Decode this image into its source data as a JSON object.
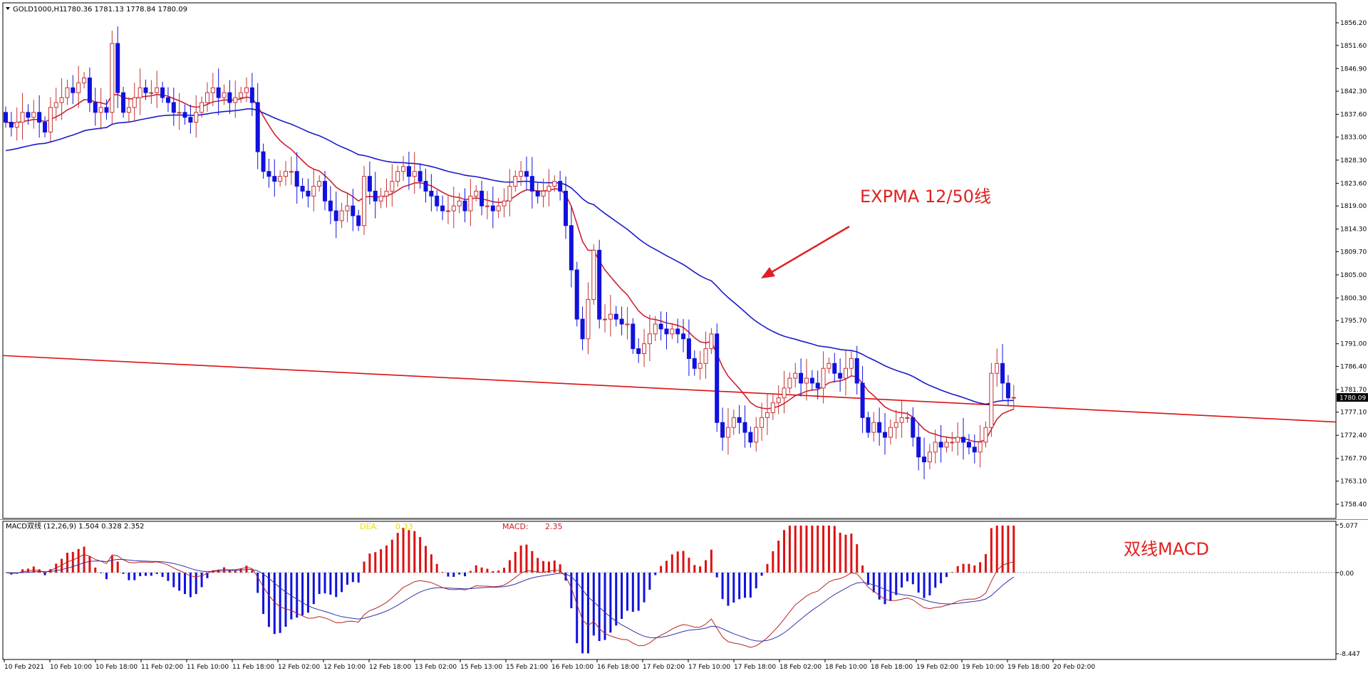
{
  "symbol_header": {
    "menu_icon": "triangle-down-icon",
    "symbol": "GOLD1000,H1",
    "ohlc": "1780.36 1781.13 1778.84 1780.09"
  },
  "colors": {
    "bull": "#c33333",
    "bear": "#1111dd",
    "ema_fast": "#cc2233",
    "ema_slow": "#1a1acc",
    "trendline": "#dd1111",
    "annotation": "#e02020",
    "dea_label": "#e8e000",
    "grid_frame": "#000000"
  },
  "annotations": {
    "expma": "EXPMA 12/50线",
    "macd": "双线MACD"
  },
  "price_axis": {
    "ticks": [
      "1856.20",
      "1851.60",
      "1846.90",
      "1842.30",
      "1837.60",
      "1833.00",
      "1828.30",
      "1823.60",
      "1819.00",
      "1814.30",
      "1809.70",
      "1805.00",
      "1800.30",
      "1795.70",
      "1791.00",
      "1786.40",
      "1781.70",
      "1777.10",
      "1772.40",
      "1767.70",
      "1763.10",
      "1758.40"
    ],
    "current": "1780.09"
  },
  "macd_panel": {
    "title": "MACD双线 (12,26,9) 1.504 0.328 2.352",
    "dea_label": "DEA:",
    "dea_value": "0.33",
    "macd_label": "MACD:",
    "macd_value": "2.35",
    "ticks": [
      "5.077",
      "0.00",
      "-8.447"
    ]
  },
  "time_axis": {
    "labels": [
      "10 Feb 2021",
      "10 Feb 10:00",
      "10 Feb 18:00",
      "11 Feb 02:00",
      "11 Feb 10:00",
      "11 Feb 18:00",
      "12 Feb 02:00",
      "12 Feb 10:00",
      "12 Feb 18:00",
      "13 Feb 02:00",
      "15 Feb 13:00",
      "15 Feb 21:00",
      "16 Feb 10:00",
      "16 Feb 18:00",
      "17 Feb 02:00",
      "17 Feb 10:00",
      "17 Feb 18:00",
      "18 Feb 02:00",
      "18 Feb 10:00",
      "18 Feb 18:00",
      "19 Feb 02:00",
      "19 Feb 10:00",
      "19 Feb 18:00",
      "20 Feb 02:00"
    ]
  },
  "chart_data": {
    "type": "candlestick",
    "symbol": "GOLD1000",
    "timeframe": "H1",
    "ylim": [
      1758.4,
      1856.2
    ],
    "indicators": [
      "EMA 12",
      "EMA 50",
      "MACD (12,26,9)"
    ],
    "closes": [
      1836,
      1835,
      1836,
      1838,
      1837,
      1838,
      1836,
      1834,
      1839,
      1840,
      1841,
      1843,
      1842,
      1844,
      1845,
      1840,
      1838,
      1839,
      1838,
      1852,
      1842,
      1838,
      1839,
      1841,
      1843,
      1842,
      1842,
      1843,
      1841,
      1840,
      1838,
      1838,
      1837,
      1836,
      1838,
      1840,
      1842,
      1843,
      1841,
      1842,
      1840,
      1841,
      1842,
      1843,
      1840,
      1830,
      1826,
      1825,
      1824,
      1825,
      1826,
      1826,
      1823,
      1822,
      1821,
      1823,
      1824,
      1820,
      1818,
      1816,
      1818,
      1819,
      1817,
      1815,
      1825,
      1822,
      1820,
      1821,
      1822,
      1824,
      1826,
      1827,
      1825,
      1826,
      1824,
      1822,
      1821,
      1819,
      1818,
      1818,
      1819,
      1820,
      1818,
      1821,
      1822,
      1819,
      1819,
      1818,
      1819,
      1820,
      1823,
      1825,
      1826,
      1825,
      1822,
      1821,
      1822,
      1823,
      1824,
      1822,
      1815,
      1806,
      1796,
      1792,
      1800,
      1810,
      1796,
      1796,
      1797,
      1796,
      1795,
      1795,
      1790,
      1789,
      1791,
      1793,
      1795,
      1794,
      1793,
      1794,
      1793,
      1792,
      1788,
      1786,
      1787,
      1790,
      1793,
      1775,
      1772,
      1774,
      1776,
      1775,
      1773,
      1771,
      1774,
      1776,
      1777,
      1779,
      1780,
      1782,
      1784,
      1785,
      1783,
      1784,
      1783,
      1782,
      1786,
      1787,
      1785,
      1784,
      1786,
      1788,
      1783,
      1776,
      1773,
      1775,
      1773,
      1772,
      1774,
      1775,
      1776,
      1776,
      1772,
      1768,
      1767,
      1769,
      1771,
      1770,
      1771,
      1771,
      1772,
      1771,
      1770,
      1769,
      1771,
      1774,
      1785,
      1787,
      1783,
      1780,
      1780.09
    ]
  }
}
